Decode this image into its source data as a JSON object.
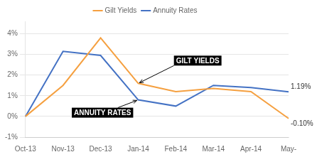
{
  "chart_data": {
    "type": "line",
    "categories": [
      "Oct-13",
      "Nov-13",
      "Dec-13",
      "Jan-14",
      "Feb-14",
      "Mar-14",
      "Apr-14",
      "May-"
    ],
    "series": [
      {
        "name": "Gilt Yields",
        "color": "#F5A040",
        "values": [
          0.0,
          1.5,
          3.8,
          1.6,
          1.2,
          1.35,
          1.2,
          -0.1
        ],
        "value_labels": [
          null,
          null,
          null,
          null,
          null,
          null,
          null,
          "-0.10%"
        ]
      },
      {
        "name": "Annuity Rates",
        "color": "#4472C4",
        "values": [
          0.0,
          3.15,
          2.95,
          0.8,
          0.5,
          1.5,
          1.4,
          1.19
        ],
        "value_labels": [
          null,
          null,
          null,
          null,
          null,
          null,
          null,
          "1.19%"
        ]
      }
    ],
    "annotations": [
      {
        "text": "GILT YIELDS",
        "series": "Gilt Yields",
        "category": "Jan-14"
      },
      {
        "text": "ANNUITY RATES",
        "series": "Annuity Rates",
        "category": "Jan-14"
      }
    ],
    "ylim": [
      -1.0,
      4.6
    ],
    "yticks": [
      {
        "value": -1,
        "label": "-1%"
      },
      {
        "value": 0,
        "label": "0%"
      },
      {
        "value": 1,
        "label": "1%"
      },
      {
        "value": 2,
        "label": "2%"
      },
      {
        "value": 3,
        "label": "3%"
      },
      {
        "value": 4,
        "label": "4%"
      }
    ],
    "grid": "y",
    "legend": "top"
  }
}
